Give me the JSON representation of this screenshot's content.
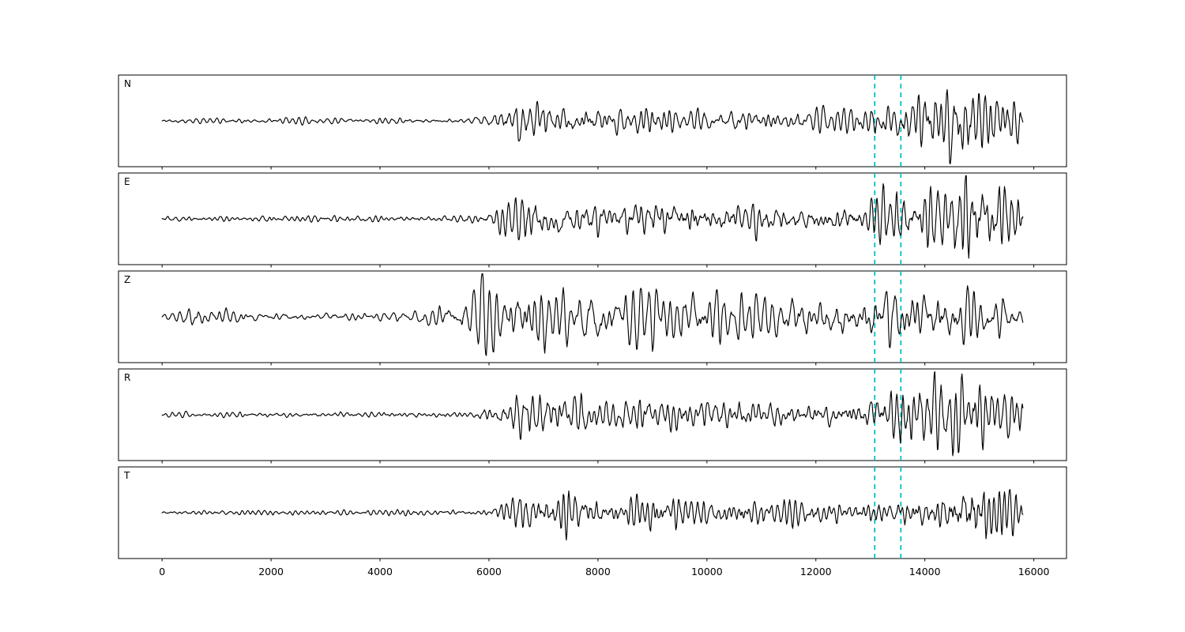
{
  "figure": {
    "background": "#ffffff",
    "border_color": "#000000"
  },
  "chart_data": {
    "type": "line",
    "chart_kind": "seismogram-multipanel",
    "title": "",
    "xlabel": "",
    "ylabel": "",
    "panels": [
      {
        "label": "N"
      },
      {
        "label": "E"
      },
      {
        "label": "Z"
      },
      {
        "label": "R"
      },
      {
        "label": "T"
      }
    ],
    "x_axis": {
      "xlim": [
        -800,
        16600
      ],
      "ticks": [
        0,
        2000,
        4000,
        6000,
        8000,
        10000,
        12000,
        14000,
        16000
      ],
      "tick_labels": [
        "0",
        "2000",
        "4000",
        "6000",
        "8000",
        "10000",
        "12000",
        "14000",
        "16000"
      ],
      "grid": false
    },
    "trace": {
      "color": "#000000",
      "x_start": 0,
      "x_end": 15800,
      "points_per_trace": 1400,
      "line_width": 1.15
    },
    "vlines": {
      "x": [
        13080,
        13560
      ],
      "color": "#00bfbf",
      "style": "dashed",
      "line_width": 1.8
    },
    "legend": {
      "visible": false
    },
    "waveform_synthesis": {
      "seed": 42,
      "ar_r": 0.93,
      "ar_thetas": [
        0.58,
        0.62,
        0.5,
        0.6,
        0.66
      ],
      "envelopes": {
        "N": [
          [
            0,
            0.06
          ],
          [
            5600,
            0.07
          ],
          [
            6000,
            0.15
          ],
          [
            6400,
            0.55
          ],
          [
            6700,
            0.65
          ],
          [
            7100,
            0.5
          ],
          [
            7600,
            0.38
          ],
          [
            8200,
            0.4
          ],
          [
            9000,
            0.35
          ],
          [
            10000,
            0.3
          ],
          [
            11000,
            0.28
          ],
          [
            12000,
            0.26
          ],
          [
            12800,
            0.28
          ],
          [
            13200,
            0.45
          ],
          [
            13600,
            0.7
          ],
          [
            14200,
            0.75
          ],
          [
            14800,
            1.0
          ],
          [
            15200,
            0.75
          ],
          [
            15500,
            0.6
          ],
          [
            15800,
            0.55
          ]
        ],
        "E": [
          [
            0,
            0.06
          ],
          [
            5400,
            0.08
          ],
          [
            6000,
            0.18
          ],
          [
            6500,
            0.5
          ],
          [
            7000,
            0.45
          ],
          [
            7600,
            0.48
          ],
          [
            8200,
            0.38
          ],
          [
            9000,
            0.45
          ],
          [
            9800,
            0.38
          ],
          [
            11000,
            0.32
          ],
          [
            12000,
            0.28
          ],
          [
            12900,
            0.38
          ],
          [
            13300,
            0.65
          ],
          [
            13800,
            0.55
          ],
          [
            14300,
            0.75
          ],
          [
            14800,
            0.95
          ],
          [
            15300,
            0.75
          ],
          [
            15800,
            0.6
          ]
        ],
        "Z": [
          [
            0,
            0.08
          ],
          [
            400,
            0.14
          ],
          [
            700,
            0.25
          ],
          [
            1200,
            0.17
          ],
          [
            2000,
            0.1
          ],
          [
            4200,
            0.11
          ],
          [
            5000,
            0.2
          ],
          [
            5600,
            0.5
          ],
          [
            5850,
            1.0
          ],
          [
            6100,
            0.8
          ],
          [
            6500,
            0.65
          ],
          [
            7000,
            0.7
          ],
          [
            8000,
            0.65
          ],
          [
            9000,
            0.7
          ],
          [
            10000,
            0.62
          ],
          [
            11000,
            0.55
          ],
          [
            12000,
            0.58
          ],
          [
            13000,
            0.6
          ],
          [
            13600,
            0.75
          ],
          [
            14500,
            0.68
          ],
          [
            15300,
            0.6
          ],
          [
            15800,
            0.42
          ]
        ],
        "R": [
          [
            0,
            0.05
          ],
          [
            5600,
            0.07
          ],
          [
            6200,
            0.25
          ],
          [
            6600,
            0.6
          ],
          [
            7000,
            0.55
          ],
          [
            7700,
            0.45
          ],
          [
            8300,
            0.38
          ],
          [
            9000,
            0.5
          ],
          [
            9600,
            0.38
          ],
          [
            10500,
            0.35
          ],
          [
            11500,
            0.3
          ],
          [
            12500,
            0.3
          ],
          [
            13100,
            0.45
          ],
          [
            13500,
            0.7
          ],
          [
            14000,
            0.8
          ],
          [
            14500,
            0.85
          ],
          [
            15000,
            0.7
          ],
          [
            15400,
            0.6
          ],
          [
            15800,
            0.55
          ]
        ],
        "T": [
          [
            0,
            0.05
          ],
          [
            6000,
            0.07
          ],
          [
            6400,
            0.38
          ],
          [
            6900,
            0.45
          ],
          [
            7500,
            0.5
          ],
          [
            8200,
            0.38
          ],
          [
            9000,
            0.45
          ],
          [
            9800,
            0.35
          ],
          [
            10800,
            0.3
          ],
          [
            11800,
            0.26
          ],
          [
            12800,
            0.24
          ],
          [
            13400,
            0.3
          ],
          [
            14000,
            0.38
          ],
          [
            14500,
            0.6
          ],
          [
            14900,
            1.0
          ],
          [
            15200,
            0.85
          ],
          [
            15500,
            0.55
          ],
          [
            15800,
            0.5
          ]
        ]
      }
    }
  }
}
